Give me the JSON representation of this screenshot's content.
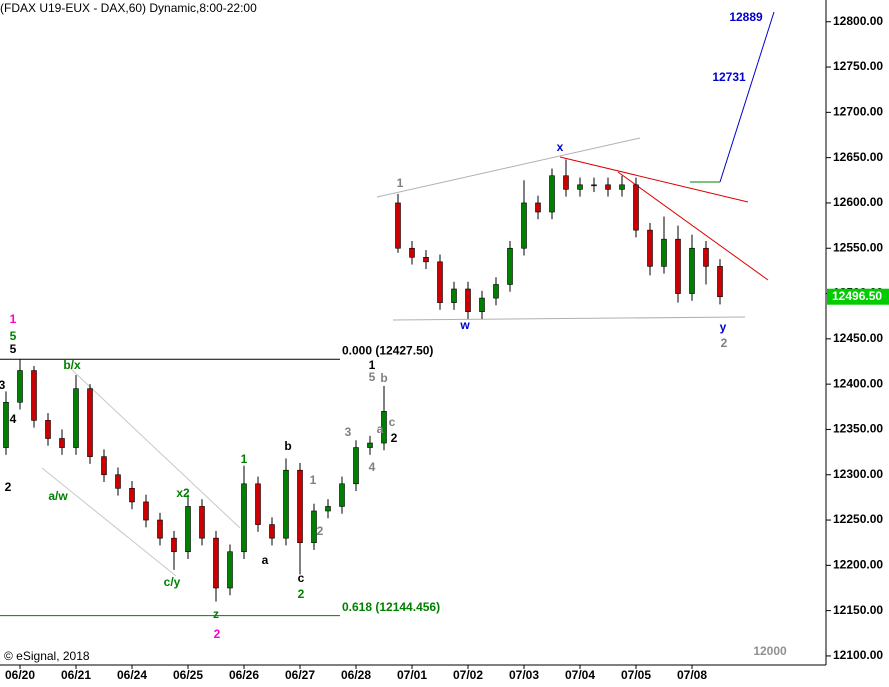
{
  "chart_data": {
    "type": "candlestick",
    "title": "(FDAX U19-EUX - DAX,60) Dynamic,8:00-22:00",
    "x": [
      -0.25,
      0,
      0.25,
      0.5,
      0.75,
      1,
      1.25,
      1.5,
      1.75,
      2,
      2.25,
      2.5,
      2.75,
      3,
      3.25,
      3.5,
      3.75,
      4,
      4.25,
      4.5,
      4.75,
      5,
      5.25,
      5.5,
      5.75,
      6,
      6.25,
      6.5,
      6.75,
      7,
      7.25,
      7.5,
      7.75,
      8,
      8.25,
      8.5,
      8.75,
      9,
      9.25,
      9.5,
      9.75,
      10,
      10.25,
      10.5,
      10.75,
      11,
      11.25,
      11.5,
      11.75,
      12,
      12.25,
      12.5
    ],
    "open": [
      12330,
      12380,
      12415,
      12360,
      12340,
      12330,
      12395,
      12320,
      12300,
      12285,
      12270,
      12250,
      12230,
      12215,
      12265,
      12230,
      12175,
      12215,
      12290,
      12245,
      12230,
      12305,
      12225,
      12260,
      12265,
      12290,
      12330,
      12335,
      12600,
      12550,
      12540,
      12535,
      12490,
      12505,
      12480,
      12495,
      12510,
      12550,
      12600,
      12590,
      12630,
      12615,
      12620,
      12620,
      12615,
      12620,
      12570,
      12530,
      12560,
      12500,
      12550,
      12530
    ],
    "high": [
      12392,
      12427.5,
      12420,
      12368,
      12350,
      12410,
      12400,
      12328,
      12308,
      12293,
      12278,
      12258,
      12238,
      12278,
      12273,
      12238,
      12223,
      12310,
      12298,
      12253,
      12318,
      12313,
      12268,
      12273,
      12298,
      12338,
      12343,
      12398,
      12610,
      12558,
      12548,
      12543,
      12513,
      12513,
      12503,
      12518,
      12558,
      12625,
      12608,
      12638,
      12648,
      12628,
      12628,
      12628,
      12630,
      12628,
      12578,
      12585,
      12575,
      12565,
      12558,
      12538
    ],
    "low": [
      12322,
      12372,
      12352,
      12332,
      12322,
      12322,
      12312,
      12292,
      12277,
      12262,
      12242,
      12222,
      12195,
      12207,
      12222,
      12160,
      12167,
      12207,
      12237,
      12222,
      12222,
      12190,
      12217,
      12252,
      12257,
      12282,
      12322,
      12327,
      12545,
      12532,
      12527,
      12482,
      12482,
      12472,
      12472,
      12487,
      12502,
      12542,
      12582,
      12582,
      12607,
      12607,
      12612,
      12607,
      12607,
      12562,
      12520,
      12522,
      12490,
      12492,
      12510,
      12488
    ],
    "close": [
      12380,
      12415,
      12360,
      12340,
      12330,
      12395,
      12320,
      12300,
      12285,
      12270,
      12250,
      12230,
      12215,
      12265,
      12230,
      12175,
      12215,
      12290,
      12245,
      12230,
      12305,
      12225,
      12260,
      12265,
      12290,
      12330,
      12335,
      12370,
      12550,
      12540,
      12535,
      12490,
      12505,
      12480,
      12495,
      12510,
      12550,
      12600,
      12590,
      12630,
      12615,
      12620,
      12620,
      12615,
      12620,
      12570,
      12530,
      12560,
      12500,
      12550,
      12530,
      12496.5
    ],
    "up_color": "#008000",
    "down_color": "#cc0000",
    "xlim": [
      -0.357,
      14.393
    ],
    "xticks": [
      {
        "value": 0,
        "label": "06/20"
      },
      {
        "value": 1,
        "label": "06/21"
      },
      {
        "value": 2,
        "label": "06/24"
      },
      {
        "value": 3,
        "label": "06/25"
      },
      {
        "value": 4,
        "label": "06/26"
      },
      {
        "value": 5,
        "label": "06/27"
      },
      {
        "value": 6,
        "label": "06/28"
      },
      {
        "value": 7,
        "label": "07/01"
      },
      {
        "value": 8,
        "label": "07/02"
      },
      {
        "value": 9,
        "label": "07/03"
      },
      {
        "value": 10,
        "label": "07/04"
      },
      {
        "value": 11,
        "label": "07/05"
      },
      {
        "value": 12,
        "label": "07/08"
      }
    ],
    "ylim": [
      12090,
      12824
    ],
    "yticks": [
      {
        "value": 12100,
        "label": "12100.00"
      },
      {
        "value": 12150,
        "label": "12150.00"
      },
      {
        "value": 12200,
        "label": "12200.00"
      },
      {
        "value": 12250,
        "label": "12250.00"
      },
      {
        "value": 12300,
        "label": "12300.00"
      },
      {
        "value": 12350,
        "label": "12350.00"
      },
      {
        "value": 12400,
        "label": "12400.00"
      },
      {
        "value": 12450,
        "label": "12450.00"
      },
      {
        "value": 12500,
        "label": "12500.00"
      },
      {
        "value": 12550,
        "label": "12550.00"
      },
      {
        "value": 12600,
        "label": "12600.00"
      },
      {
        "value": 12650,
        "label": "12650.00"
      },
      {
        "value": 12700,
        "label": "12700.00"
      },
      {
        "value": 12750,
        "label": "12750.00"
      },
      {
        "value": 12800,
        "label": "12800.00"
      }
    ],
    "last_price": {
      "value": 12496.5,
      "label": "12496.50"
    },
    "fib_levels": [
      {
        "value": 12427.5,
        "label": "0.000 (12427.50)",
        "color": "#000000"
      },
      {
        "value": 12144.456,
        "label": "0.618 (12144.456)",
        "color": "#008000"
      }
    ],
    "annotations": [
      {
        "text": "1",
        "color": "#ff00cc"
      },
      {
        "text": "5",
        "color": "#008000"
      },
      {
        "text": "5",
        "color": "#000000"
      },
      {
        "text": "3",
        "color": "#000000"
      },
      {
        "text": "4",
        "color": "#000000"
      },
      {
        "text": "2",
        "color": "#000000"
      },
      {
        "text": "b/x",
        "color": "#008000"
      },
      {
        "text": "a/w",
        "color": "#008000"
      },
      {
        "text": "x2",
        "color": "#008000"
      },
      {
        "text": "c/y",
        "color": "#008000"
      },
      {
        "text": "z",
        "color": "#008000"
      },
      {
        "text": "2",
        "color": "#ff00cc"
      },
      {
        "text": "1",
        "color": "#008000"
      },
      {
        "text": "b",
        "color": "#000000"
      },
      {
        "text": "a",
        "color": "#000000"
      },
      {
        "text": "c",
        "color": "#000000"
      },
      {
        "text": "2",
        "color": "#008000"
      },
      {
        "text": "1",
        "color": "#808080"
      },
      {
        "text": "2",
        "color": "#808080"
      },
      {
        "text": "3",
        "color": "#808080"
      },
      {
        "text": "4",
        "color": "#808080"
      },
      {
        "text": "1",
        "color": "#000000"
      },
      {
        "text": "5",
        "color": "#808080"
      },
      {
        "text": "b",
        "color": "#808080"
      },
      {
        "text": "a",
        "color": "#808080"
      },
      {
        "text": "c",
        "color": "#808080"
      },
      {
        "text": "2",
        "color": "#000000"
      },
      {
        "text": "1",
        "color": "#808080"
      },
      {
        "text": "w",
        "color": "#0000cc"
      },
      {
        "text": "x",
        "color": "#0000cc"
      },
      {
        "text": "y",
        "color": "#0000cc"
      },
      {
        "text": "2",
        "color": "#808080"
      },
      {
        "text": "12889",
        "color": "#0000cc"
      },
      {
        "text": "12731",
        "color": "#0000cc"
      },
      {
        "text": "12000",
        "color": "#909090"
      },
      {
        "text": "© eSignal, 2018",
        "color": "#000000"
      }
    ]
  }
}
